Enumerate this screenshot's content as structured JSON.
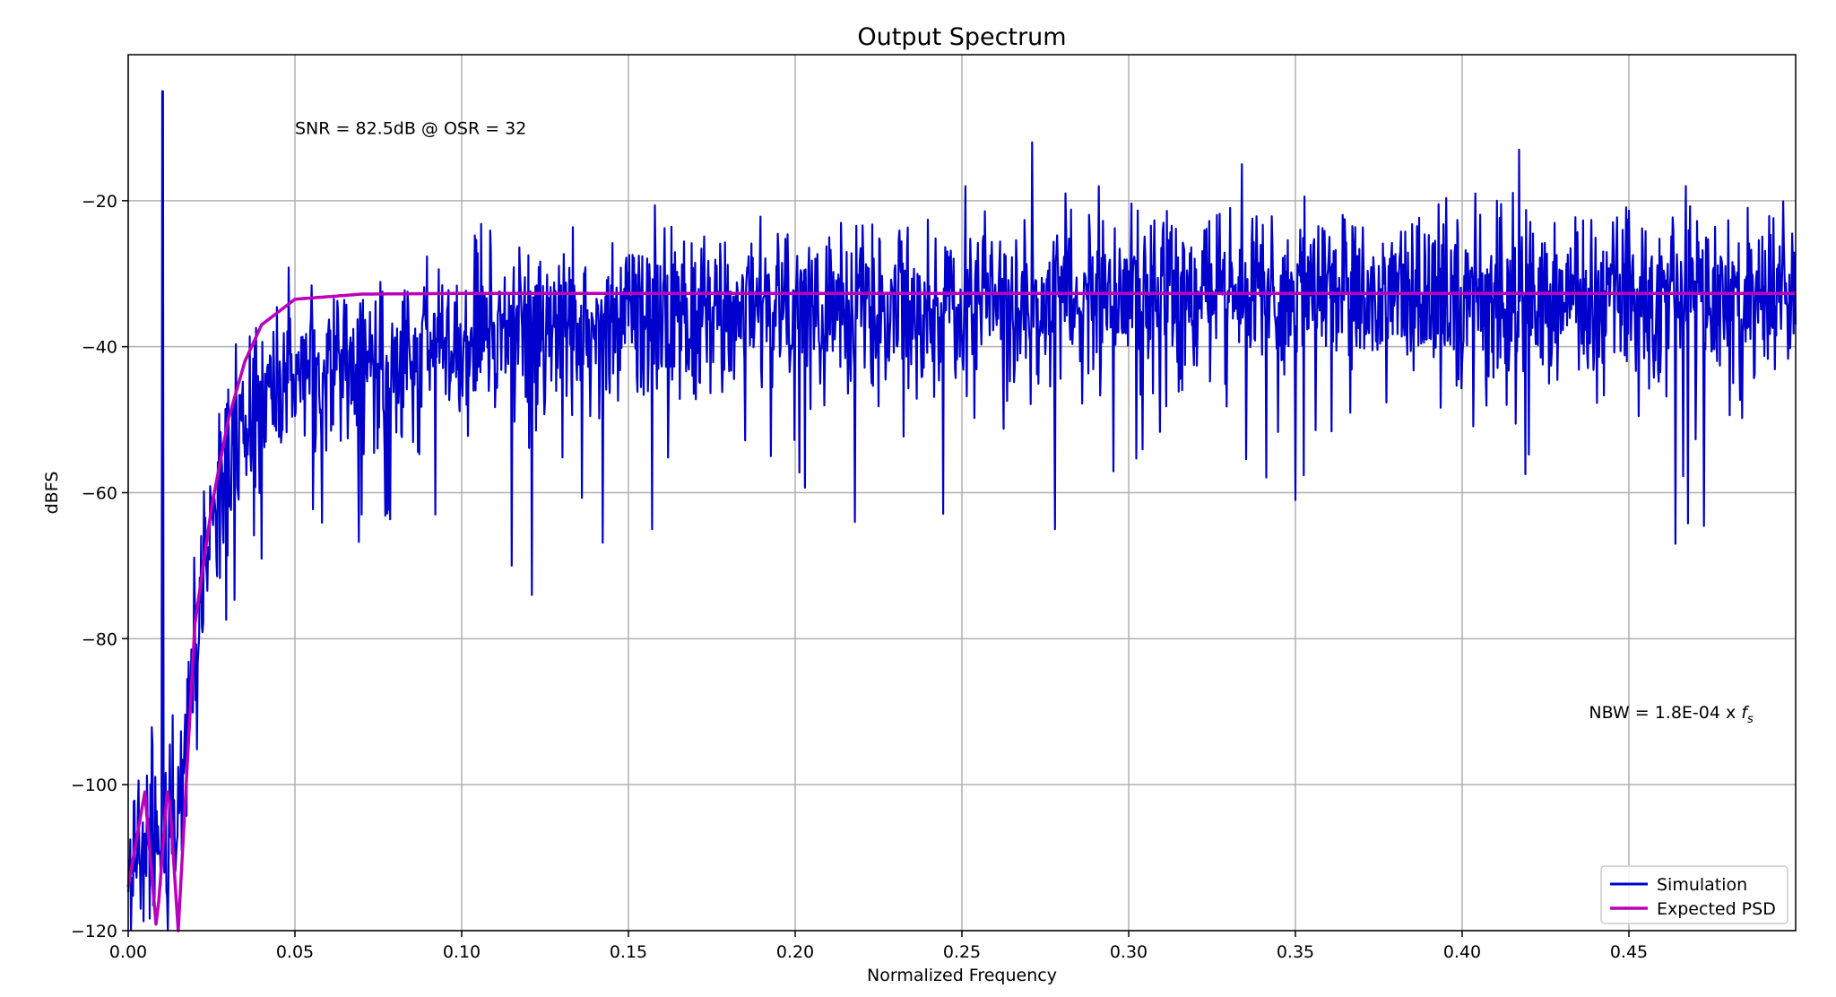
{
  "chart_data": {
    "type": "line",
    "title": "Output Spectrum",
    "xlabel": "Normalized Frequency",
    "ylabel": "dBFS",
    "xlim": [
      0,
      0.5
    ],
    "ylim": [
      -120,
      0
    ],
    "x_ticks": [
      0.0,
      0.05,
      0.1,
      0.15,
      0.2,
      0.25,
      0.3,
      0.35,
      0.4,
      0.45
    ],
    "x_tick_labels": [
      "0.00",
      "0.05",
      "0.10",
      "0.15",
      "0.20",
      "0.25",
      "0.30",
      "0.35",
      "0.40",
      "0.45"
    ],
    "y_ticks": [
      -120,
      -100,
      -80,
      -60,
      -40,
      -20
    ],
    "y_tick_labels": [
      "−120",
      "−100",
      "−80",
      "−60",
      "−40",
      "−20"
    ],
    "grid": true,
    "legend_position": "bottom-right",
    "annotations": [
      {
        "text": "SNR = 82.5dB @ OSR = 32",
        "x": 0.05,
        "y": -10
      },
      {
        "text": "NBW = 1.8E-04 x ",
        "italic": "f",
        "sub": "s",
        "x": 0.438,
        "y": -90
      }
    ],
    "series": [
      {
        "name": "Simulation",
        "color": "#0000cc",
        "description_points": [
          {
            "x": 0.0,
            "y": -112
          },
          {
            "x": 0.005,
            "y": -108
          },
          {
            "x": 0.0103,
            "y": -5
          },
          {
            "x": 0.015,
            "y": -105
          },
          {
            "x": 0.02,
            "y": -80
          },
          {
            "x": 0.025,
            "y": -65
          },
          {
            "x": 0.03,
            "y": -55
          },
          {
            "x": 0.04,
            "y": -47
          },
          {
            "x": 0.05,
            "y": -44
          },
          {
            "x": 0.075,
            "y": -42
          },
          {
            "x": 0.1,
            "y": -39
          },
          {
            "x": 0.15,
            "y": -37
          },
          {
            "x": 0.2,
            "y": -35
          },
          {
            "x": 0.25,
            "y": -34
          },
          {
            "x": 0.3,
            "y": -33
          },
          {
            "x": 0.4,
            "y": -33
          },
          {
            "x": 0.5,
            "y": -33
          }
        ],
        "spikes_up": [
          {
            "x": 0.251,
            "y": -18
          },
          {
            "x": 0.271,
            "y": -12
          },
          {
            "x": 0.281,
            "y": -19
          },
          {
            "x": 0.291,
            "y": -18
          },
          {
            "x": 0.334,
            "y": -15
          },
          {
            "x": 0.417,
            "y": -13
          },
          {
            "x": 0.404,
            "y": -19
          },
          {
            "x": 0.467,
            "y": -18
          }
        ],
        "spikes_down": [
          {
            "x": 0.115,
            "y": -70
          },
          {
            "x": 0.121,
            "y": -74
          },
          {
            "x": 0.218,
            "y": -64
          },
          {
            "x": 0.278,
            "y": -65
          },
          {
            "x": 0.35,
            "y": -61
          },
          {
            "x": 0.464,
            "y": -67
          },
          {
            "x": 0.092,
            "y": -63
          },
          {
            "x": 0.07,
            "y": -63
          }
        ]
      },
      {
        "name": "Expected PSD",
        "color": "#bb00bb",
        "description_points": [
          {
            "x": 0.0,
            "y": -114
          },
          {
            "x": 0.005,
            "y": -101
          },
          {
            "x": 0.0085,
            "y": -120
          },
          {
            "x": 0.012,
            "y": -99
          },
          {
            "x": 0.015,
            "y": -120
          },
          {
            "x": 0.02,
            "y": -78
          },
          {
            "x": 0.025,
            "y": -62
          },
          {
            "x": 0.03,
            "y": -50
          },
          {
            "x": 0.035,
            "y": -42
          },
          {
            "x": 0.04,
            "y": -37
          },
          {
            "x": 0.05,
            "y": -33.5
          },
          {
            "x": 0.07,
            "y": -32.8
          },
          {
            "x": 0.1,
            "y": -32.7
          },
          {
            "x": 0.5,
            "y": -32.7
          }
        ]
      }
    ]
  }
}
